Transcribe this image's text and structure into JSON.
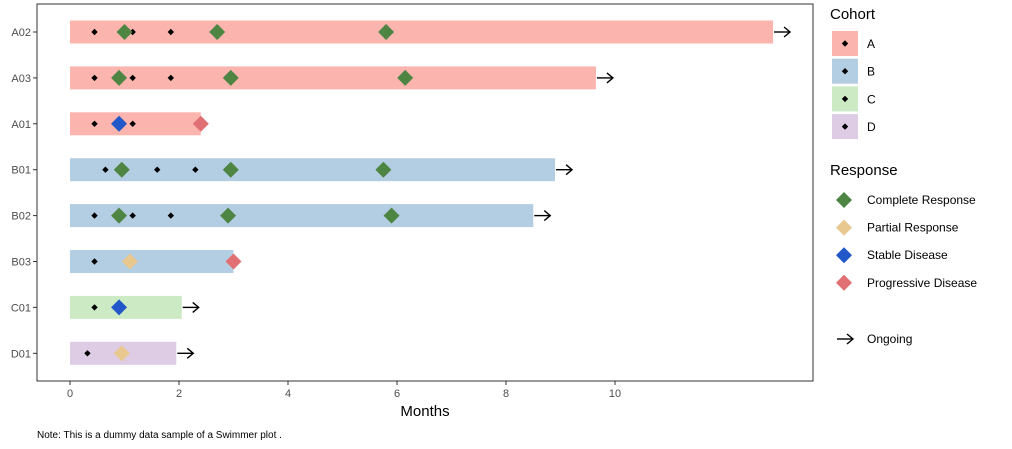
{
  "chart_data": {
    "type": "swimmer",
    "title": "",
    "xlabel": "Months",
    "ylabel": "",
    "xlim": [
      -0.6,
      13.8
    ],
    "x_ticks": [
      0,
      2,
      4,
      6,
      8,
      10
    ],
    "grid": false,
    "categories": [
      "A02",
      "A03",
      "A01",
      "B01",
      "B02",
      "B03",
      "C01",
      "D01"
    ],
    "subjects": [
      {
        "id": "A02",
        "cohort": "A",
        "duration": 12.9,
        "ongoing": true,
        "doses": [
          0.45,
          1.15,
          1.85
        ],
        "responses": [
          {
            "time": 1.0,
            "type": "Complete Response"
          },
          {
            "time": 2.7,
            "type": "Complete Response"
          },
          {
            "time": 5.8,
            "type": "Complete Response"
          }
        ]
      },
      {
        "id": "A03",
        "cohort": "A",
        "duration": 9.65,
        "ongoing": true,
        "doses": [
          0.45,
          1.15,
          1.85
        ],
        "responses": [
          {
            "time": 0.9,
            "type": "Complete Response"
          },
          {
            "time": 2.95,
            "type": "Complete Response"
          },
          {
            "time": 6.15,
            "type": "Complete Response"
          }
        ]
      },
      {
        "id": "A01",
        "cohort": "A",
        "duration": 2.4,
        "ongoing": false,
        "doses": [
          0.45,
          1.15
        ],
        "responses": [
          {
            "time": 0.9,
            "type": "Stable Disease"
          },
          {
            "time": 2.4,
            "type": "Progressive Disease"
          }
        ]
      },
      {
        "id": "B01",
        "cohort": "B",
        "duration": 8.9,
        "ongoing": true,
        "doses": [
          0.65,
          1.6,
          2.3
        ],
        "responses": [
          {
            "time": 0.95,
            "type": "Complete Response"
          },
          {
            "time": 2.95,
            "type": "Complete Response"
          },
          {
            "time": 5.75,
            "type": "Complete Response"
          }
        ]
      },
      {
        "id": "B02",
        "cohort": "B",
        "duration": 8.5,
        "ongoing": true,
        "doses": [
          0.45,
          1.15,
          1.85
        ],
        "responses": [
          {
            "time": 0.9,
            "type": "Complete Response"
          },
          {
            "time": 2.9,
            "type": "Complete Response"
          },
          {
            "time": 5.9,
            "type": "Complete Response"
          }
        ]
      },
      {
        "id": "B03",
        "cohort": "B",
        "duration": 3.0,
        "ongoing": false,
        "doses": [
          0.45,
          1.15
        ],
        "responses": [
          {
            "time": 1.1,
            "type": "Partial Response"
          },
          {
            "time": 3.0,
            "type": "Progressive Disease"
          }
        ]
      },
      {
        "id": "C01",
        "cohort": "C",
        "duration": 2.05,
        "ongoing": true,
        "doses": [
          0.45
        ],
        "responses": [
          {
            "time": 0.9,
            "type": "Stable Disease"
          }
        ]
      },
      {
        "id": "D01",
        "cohort": "D",
        "duration": 1.95,
        "ongoing": true,
        "doses": [
          0.32
        ],
        "responses": [
          {
            "time": 0.95,
            "type": "Partial Response"
          }
        ]
      }
    ],
    "cohort_legend": {
      "title": "Cohort",
      "items": [
        {
          "label": "A",
          "color": "#fbb4ae"
        },
        {
          "label": "B",
          "color": "#b3cde3"
        },
        {
          "label": "C",
          "color": "#ccebc5"
        },
        {
          "label": "D",
          "color": "#decbe4"
        }
      ]
    },
    "response_legend": {
      "title": "Response",
      "items": [
        {
          "label": "Complete Response",
          "color": "#4e8542"
        },
        {
          "label": "Partial Response",
          "color": "#e8c88f"
        },
        {
          "label": "Stable Disease",
          "color": "#2257c9"
        },
        {
          "label": "Progressive Disease",
          "color": "#e17074"
        }
      ]
    },
    "ongoing_label": "Ongoing",
    "legend_position": "right",
    "note": "Note: This is a dummy data sample of a Swimmer plot ."
  }
}
